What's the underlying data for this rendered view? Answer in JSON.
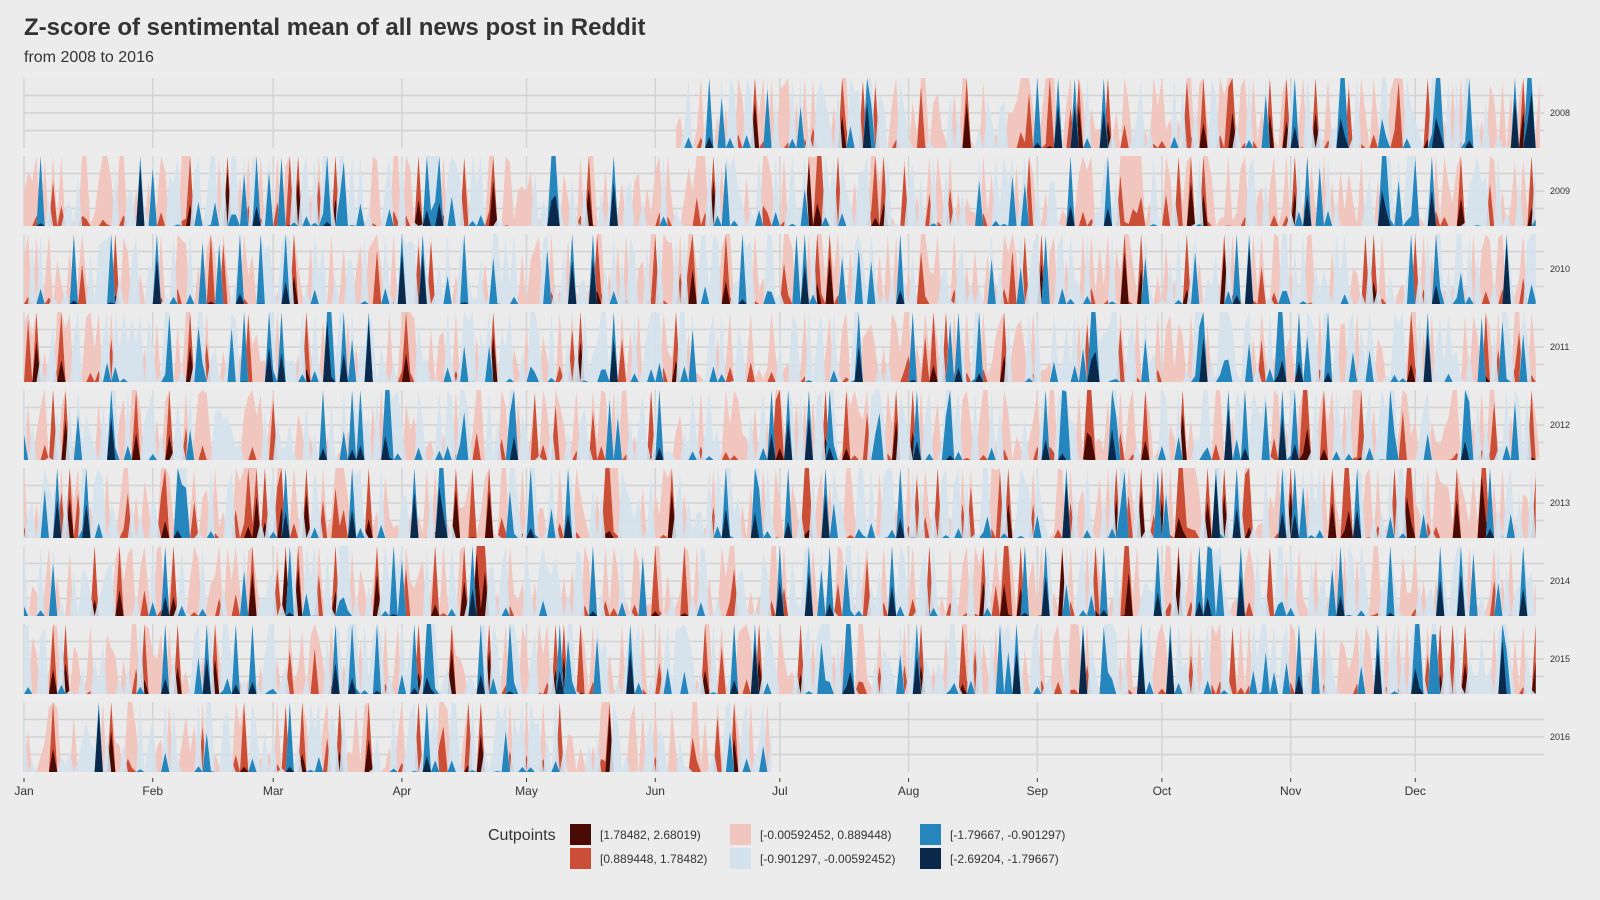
{
  "chart_data": {
    "type": "area",
    "title": "Z-score of sentimental mean of all news post in Reddit",
    "subtitle": "from 2008 to 2016",
    "xlabel": "",
    "ylabel": "",
    "x_tick_labels": [
      "Jan",
      "Feb",
      "Mar",
      "Apr",
      "May",
      "Jun",
      "Jul",
      "Aug",
      "Sep",
      "Oct",
      "Nov",
      "Dec"
    ],
    "facets": [
      {
        "year": "2008",
        "start_doy": 158,
        "end_doy": 366
      },
      {
        "year": "2009",
        "start_doy": 1,
        "end_doy": 365
      },
      {
        "year": "2010",
        "start_doy": 1,
        "end_doy": 365
      },
      {
        "year": "2011",
        "start_doy": 1,
        "end_doy": 365
      },
      {
        "year": "2012",
        "start_doy": 1,
        "end_doy": 366
      },
      {
        "year": "2013",
        "start_doy": 1,
        "end_doy": 365
      },
      {
        "year": "2014",
        "start_doy": 1,
        "end_doy": 365
      },
      {
        "year": "2015",
        "start_doy": 1,
        "end_doy": 365
      },
      {
        "year": "2016",
        "start_doy": 1,
        "end_doy": 181
      }
    ],
    "ylim": [
      -2.69204,
      2.68019
    ],
    "legend": {
      "title": "Cutpoints",
      "bins": [
        {
          "label": "[1.78482, 2.68019)",
          "color": "#4a0b04"
        },
        {
          "label": "[0.889448, 1.78482)",
          "color": "#cb4e36"
        },
        {
          "label": "[-0.00592452, 0.889448)",
          "color": "#f0c6bf"
        },
        {
          "label": "[-0.901297, -0.00592452)",
          "color": "#d4e2ed"
        },
        {
          "label": "[-1.79667, -0.901297)",
          "color": "#2585bd"
        },
        {
          "label": "[-2.69204, -1.79667)",
          "color": "#0b2a4b"
        }
      ]
    },
    "series_note": "Daily z-score values per year; rendered as a horizon plot"
  }
}
